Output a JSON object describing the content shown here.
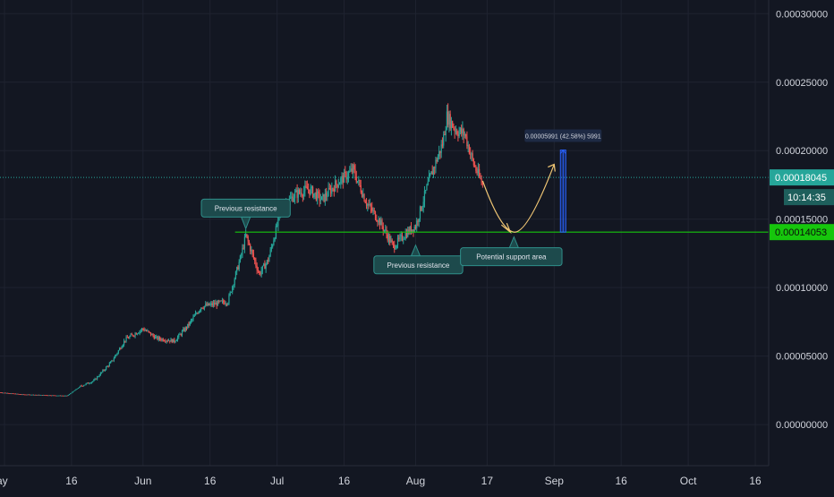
{
  "colors": {
    "background": "#131722",
    "grid": "#1f2330",
    "axis_text": "#d1d4dc",
    "candle_up": "#26a69a",
    "candle_down": "#ef5350",
    "support_line": "#16c60c",
    "current_price_line": "#26a69a",
    "projection": "#f0c674",
    "measure": "#2962ff",
    "callout_bg": "#1d4a4c",
    "callout_border": "#2f8f8a"
  },
  "chart_data": {
    "type": "candlestick",
    "x_axis": {
      "tick_labels": [
        "ay",
        "16",
        "Jun",
        "16",
        "Jul",
        "16",
        "Aug",
        "17",
        "Sep",
        "16",
        "Oct",
        "16"
      ],
      "tick_dates": [
        "2020-05-01",
        "2020-05-16",
        "2020-06-01",
        "2020-06-16",
        "2020-07-01",
        "2020-07-16",
        "2020-08-01",
        "2020-08-17",
        "2020-09-01",
        "2020-09-16",
        "2020-10-01",
        "2020-10-16"
      ],
      "range": [
        "2020-04-30",
        "2020-10-19"
      ]
    },
    "y_axis": {
      "tick_labels": [
        "0.00030000",
        "0.00025000",
        "0.00020000",
        "0.00015000",
        "0.00010000",
        "0.00005000",
        "0.00000000"
      ],
      "tick_values": [
        0.0003,
        0.00025,
        0.0002,
        0.00015,
        0.0001,
        5e-05,
        0.0
      ],
      "range": [
        -3e-05,
        0.00031
      ],
      "side": "right"
    },
    "price_series": [
      {
        "date": "2020-04-30",
        "close": 2.35e-05
      },
      {
        "date": "2020-05-05",
        "close": 2.2e-05
      },
      {
        "date": "2020-05-10",
        "close": 2.15e-05
      },
      {
        "date": "2020-05-15",
        "close": 2.1e-05
      },
      {
        "date": "2020-05-18",
        "close": 2.8e-05
      },
      {
        "date": "2020-05-21",
        "close": 3.2e-05
      },
      {
        "date": "2020-05-25",
        "close": 4.6e-05
      },
      {
        "date": "2020-05-28",
        "close": 6.2e-05
      },
      {
        "date": "2020-06-01",
        "close": 7e-05
      },
      {
        "date": "2020-06-04",
        "close": 6.3e-05
      },
      {
        "date": "2020-06-08",
        "close": 6.1e-05
      },
      {
        "date": "2020-06-11",
        "close": 7.2e-05
      },
      {
        "date": "2020-06-14",
        "close": 8.6e-05
      },
      {
        "date": "2020-06-17",
        "close": 8.8e-05
      },
      {
        "date": "2020-06-20",
        "close": 9e-05
      },
      {
        "date": "2020-06-23",
        "close": 0.000124
      },
      {
        "date": "2020-06-24",
        "close": 0.000138
      },
      {
        "date": "2020-06-27",
        "close": 0.00011
      },
      {
        "date": "2020-06-29",
        "close": 0.00012
      },
      {
        "date": "2020-07-02",
        "close": 0.000158
      },
      {
        "date": "2020-07-05",
        "close": 0.000168
      },
      {
        "date": "2020-07-08",
        "close": 0.000172
      },
      {
        "date": "2020-07-11",
        "close": 0.000164
      },
      {
        "date": "2020-07-14",
        "close": 0.000175
      },
      {
        "date": "2020-07-18",
        "close": 0.000186
      },
      {
        "date": "2020-07-21",
        "close": 0.000162
      },
      {
        "date": "2020-07-24",
        "close": 0.000148
      },
      {
        "date": "2020-07-27",
        "close": 0.00013
      },
      {
        "date": "2020-07-30",
        "close": 0.00014
      },
      {
        "date": "2020-08-01",
        "close": 0.000145
      },
      {
        "date": "2020-08-04",
        "close": 0.000178
      },
      {
        "date": "2020-08-07",
        "close": 0.000205
      },
      {
        "date": "2020-08-08",
        "close": 0.000225
      },
      {
        "date": "2020-08-10",
        "close": 0.000215
      },
      {
        "date": "2020-08-12",
        "close": 0.000212
      },
      {
        "date": "2020-08-14",
        "close": 0.00019
      },
      {
        "date": "2020-08-16",
        "close": 0.000175
      }
    ],
    "support_level": 0.00014053,
    "current_price": 0.00018045,
    "projection_path": [
      {
        "date": "2020-08-16",
        "value": 0.000178
      },
      {
        "date": "2020-08-20",
        "value": 0.000155
      },
      {
        "date": "2020-08-23",
        "value": 0.00014053
      },
      {
        "date": "2020-08-28",
        "value": 0.00015
      },
      {
        "date": "2020-09-01",
        "value": 0.00019
      }
    ],
    "measure": {
      "date": "2020-09-03",
      "from": 0.00014053,
      "to": 0.00020044,
      "label": "0.00005991 (42.58%) 5991"
    },
    "annotations": [
      {
        "text": "Previous resistance",
        "pointer": "down",
        "date": "2020-06-24",
        "value": 0.000143
      },
      {
        "text": "Previous resistance",
        "pointer": "up",
        "date": "2020-08-01",
        "value": 0.000131
      },
      {
        "text": "Potential support area",
        "pointer": "up",
        "date": "2020-08-23",
        "value": 0.000137
      }
    ],
    "price_labels": {
      "current": "0.00018045",
      "countdown": "10:14:35",
      "support": "0.00014053"
    },
    "grid": true
  }
}
